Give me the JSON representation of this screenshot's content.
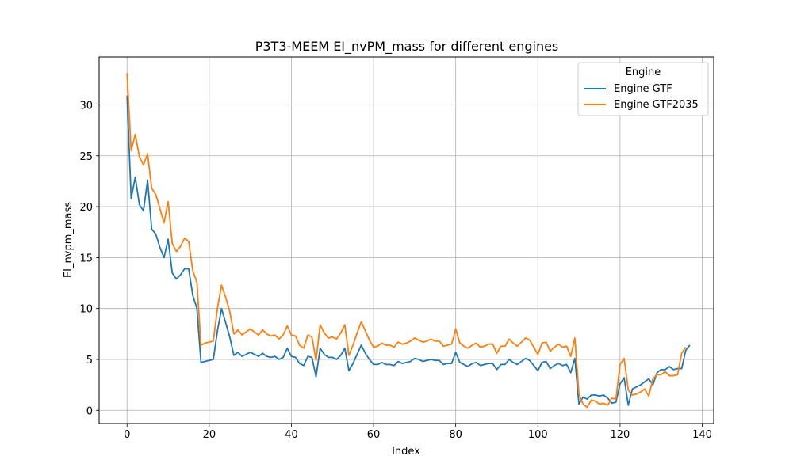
{
  "chart_data": {
    "type": "line",
    "title": "P3T3-MEEM EI_nvPM_mass for different engines",
    "xlabel": "Index",
    "ylabel": "EI_nvpm_mass",
    "xlim": [
      -6.8,
      142.8
    ],
    "ylim": [
      -1.3,
      34.7
    ],
    "xticks": [
      0,
      20,
      40,
      60,
      80,
      100,
      120,
      140
    ],
    "yticks": [
      0,
      5,
      10,
      15,
      20,
      25,
      30
    ],
    "grid": true,
    "legend": {
      "title": "Engine",
      "position": "top-right"
    },
    "series": [
      {
        "name": "Engine GTF",
        "color": "#1f77b4",
        "values": [
          30.9,
          20.8,
          22.9,
          20.2,
          19.6,
          22.6,
          17.8,
          17.3,
          16.0,
          15.0,
          16.8,
          13.5,
          12.9,
          13.3,
          13.9,
          13.9,
          11.3,
          10.0,
          4.7,
          4.8,
          4.9,
          5.0,
          7.8,
          10.0,
          8.6,
          7.2,
          5.4,
          5.7,
          5.3,
          5.5,
          5.7,
          5.5,
          5.3,
          5.6,
          5.3,
          5.2,
          5.3,
          5.0,
          5.2,
          6.1,
          5.3,
          5.2,
          4.6,
          4.4,
          5.3,
          5.2,
          3.3,
          6.1,
          5.5,
          5.2,
          5.2,
          5.0,
          5.4,
          6.1,
          3.9,
          4.6,
          5.5,
          6.4,
          5.6,
          5.0,
          4.5,
          4.5,
          4.7,
          4.5,
          4.5,
          4.4,
          4.8,
          4.6,
          4.7,
          4.8,
          5.1,
          5.0,
          4.8,
          4.9,
          5.0,
          4.9,
          4.9,
          4.5,
          4.6,
          4.6,
          5.7,
          4.7,
          4.5,
          4.3,
          4.6,
          4.7,
          4.4,
          4.5,
          4.6,
          4.6,
          4.0,
          4.5,
          4.5,
          5.0,
          4.7,
          4.5,
          4.8,
          5.1,
          4.9,
          4.4,
          3.9,
          4.7,
          4.8,
          4.1,
          4.4,
          4.6,
          4.4,
          4.5,
          3.7,
          5.1,
          0.6,
          1.3,
          1.1,
          1.5,
          1.5,
          1.4,
          1.5,
          1.2,
          0.7,
          0.8,
          2.6,
          3.2,
          0.5,
          2.1,
          2.3,
          2.5,
          2.8,
          3.1,
          2.5,
          3.7,
          4.0,
          4.0,
          4.3,
          4.0,
          4.1,
          4.1,
          5.9,
          6.4
        ]
      },
      {
        "name": "Engine GTF2035",
        "color": "#ff7f0e",
        "values": [
          33.1,
          25.5,
          27.1,
          24.9,
          24.1,
          25.2,
          21.8,
          21.2,
          19.8,
          18.4,
          20.5,
          16.4,
          15.6,
          16.1,
          16.9,
          16.6,
          13.7,
          12.6,
          6.4,
          6.6,
          6.7,
          6.8,
          10.0,
          12.3,
          11.1,
          9.7,
          7.5,
          7.9,
          7.4,
          7.7,
          8.0,
          7.7,
          7.4,
          7.9,
          7.5,
          7.3,
          7.4,
          7.0,
          7.4,
          8.3,
          7.4,
          7.3,
          6.4,
          6.1,
          7.4,
          7.2,
          4.9,
          8.4,
          7.6,
          7.1,
          7.2,
          7.0,
          7.6,
          8.4,
          5.4,
          6.4,
          7.6,
          8.7,
          7.8,
          6.9,
          6.2,
          6.3,
          6.6,
          6.4,
          6.4,
          6.2,
          6.7,
          6.5,
          6.6,
          6.8,
          7.1,
          6.9,
          6.7,
          6.8,
          7.0,
          6.8,
          6.8,
          6.3,
          6.4,
          6.5,
          8.0,
          6.6,
          6.3,
          6.1,
          6.4,
          6.6,
          6.2,
          6.3,
          6.5,
          6.5,
          5.6,
          6.3,
          6.3,
          7.0,
          6.6,
          6.3,
          6.7,
          7.1,
          6.9,
          6.2,
          5.5,
          6.6,
          6.7,
          5.8,
          6.2,
          6.5,
          6.2,
          6.3,
          5.3,
          7.1,
          1.6,
          0.6,
          0.3,
          1.0,
          0.9,
          0.6,
          0.7,
          0.5,
          1.2,
          1.1,
          4.5,
          5.1,
          2.0,
          1.5,
          1.6,
          1.8,
          2.1,
          1.4,
          3.1,
          3.5,
          3.5,
          3.8,
          3.4,
          3.4,
          3.5,
          5.6,
          6.2
        ]
      }
    ]
  }
}
